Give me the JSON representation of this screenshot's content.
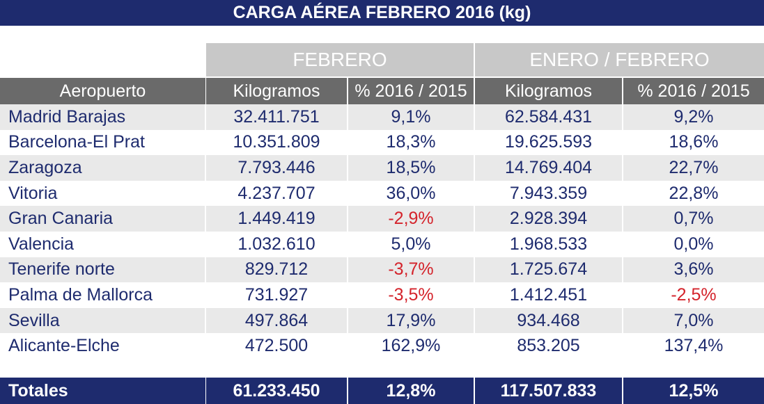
{
  "header": {
    "title": "CARGA AÉREA FEBRERO 2016 (kg)"
  },
  "table": {
    "group_headers": [
      "FEBRERO",
      "ENERO / FEBRERO"
    ],
    "columns": [
      "Aeropuerto",
      "Kilogramos",
      "% 2016 / 2015",
      "Kilogramos",
      "% 2016 / 2015"
    ],
    "rows": [
      [
        "Madrid Barajas",
        "32.411.751",
        "9,1%",
        "62.584.431",
        "9,2%"
      ],
      [
        "Barcelona-El Prat",
        "10.351.809",
        "18,3%",
        "19.625.593",
        "18,6%"
      ],
      [
        "Zaragoza",
        "7.793.446",
        "18,5%",
        "14.769.404",
        "22,7%"
      ],
      [
        "Vitoria",
        "4.237.707",
        "36,0%",
        "7.943.359",
        "22,8%"
      ],
      [
        "Gran Canaria",
        "1.449.419",
        "-2,9%",
        "2.928.394",
        "0,7%"
      ],
      [
        "Valencia",
        "1.032.610",
        "5,0%",
        "1.968.533",
        "0,0%"
      ],
      [
        "Tenerife norte",
        "829.712",
        "-3,7%",
        "1.725.674",
        "3,6%"
      ],
      [
        "Palma de Mallorca",
        "731.927",
        "-3,5%",
        "1.412.451",
        "-2,5%"
      ],
      [
        "Sevilla",
        "497.864",
        "17,9%",
        "934.468",
        "7,0%"
      ],
      [
        "Alicante-Elche",
        "472.500",
        "162,9%",
        "853.205",
        "137,4%"
      ]
    ],
    "totals": [
      "Totales",
      "61.233.450",
      "12,8%",
      "117.507.833",
      "12,5%"
    ]
  }
}
